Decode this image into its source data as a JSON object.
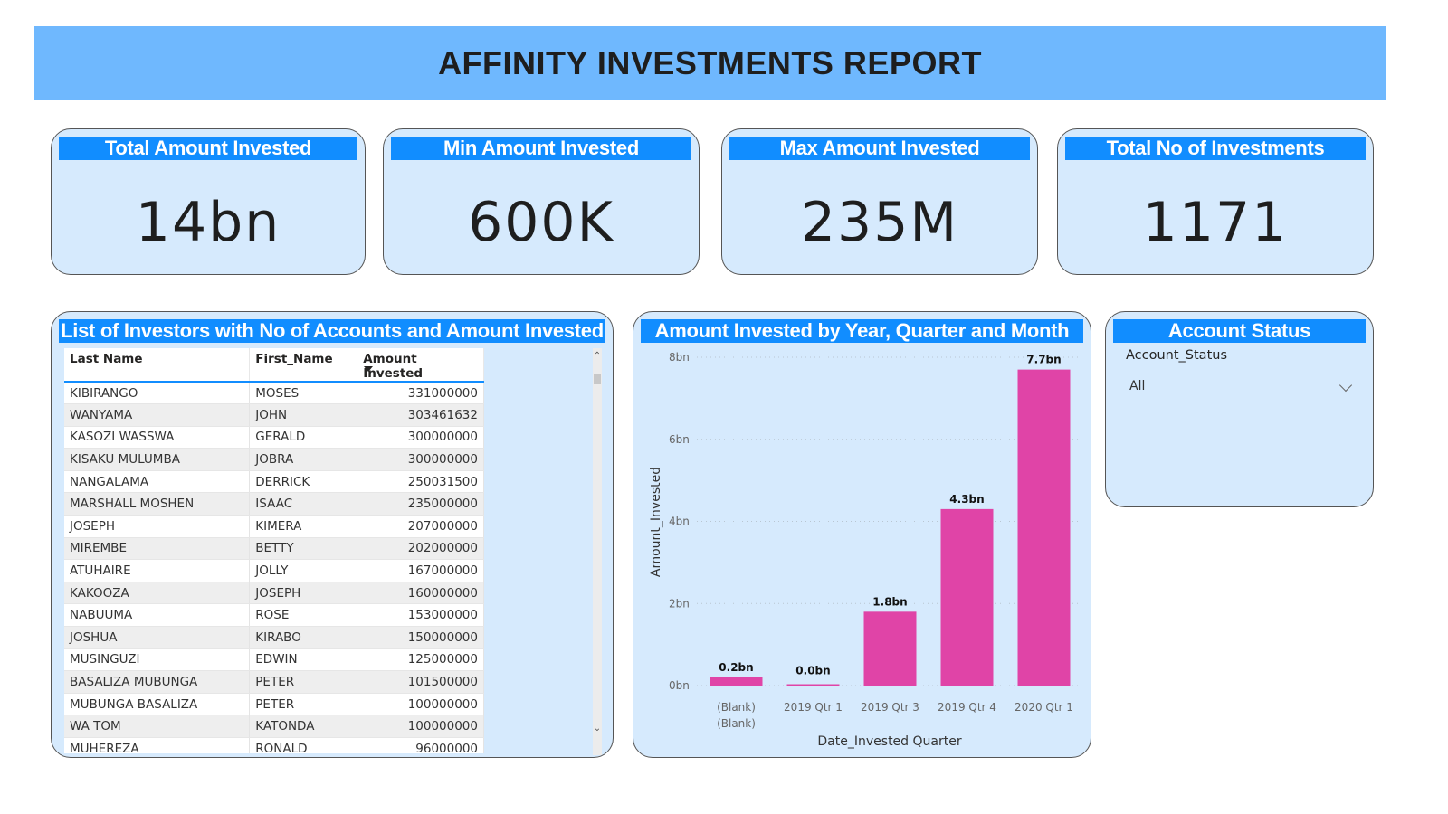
{
  "header": {
    "title": "AFFINITY INVESTMENTS REPORT"
  },
  "colors": {
    "banner": "#6fb8fe",
    "card_title": "#118dff",
    "card_bg": "#d6eafd",
    "bar": "#e044a7"
  },
  "kpis": [
    {
      "title": "Total Amount Invested",
      "value": "14bn"
    },
    {
      "title": "Min Amount Invested",
      "value": "600K"
    },
    {
      "title": "Max Amount Invested",
      "value": "235M"
    },
    {
      "title": "Total No of Investments",
      "value": "1171"
    }
  ],
  "investors_table": {
    "title": "List of Investors with No of Accounts and Amount Invested",
    "columns": [
      "Last Name",
      "First_Name",
      "Amount Invested"
    ],
    "sorted_column": "Amount Invested",
    "rows": [
      [
        "KIBIRANGO",
        "MOSES",
        "331000000"
      ],
      [
        "WANYAMA",
        "JOHN",
        "303461632"
      ],
      [
        "KASOZI WASSWA",
        "GERALD",
        "300000000"
      ],
      [
        "KISAKU MULUMBA",
        "JOBRA",
        "300000000"
      ],
      [
        "NANGALAMA",
        "DERRICK",
        "250031500"
      ],
      [
        "MARSHALL MOSHEN",
        "ISAAC",
        "235000000"
      ],
      [
        "JOSEPH",
        "KIMERA",
        "207000000"
      ],
      [
        "MIREMBE",
        "BETTY",
        "202000000"
      ],
      [
        "ATUHAIRE",
        "JOLLY",
        "167000000"
      ],
      [
        "KAKOOZA",
        "JOSEPH",
        "160000000"
      ],
      [
        "NABUUMA",
        "ROSE",
        "153000000"
      ],
      [
        "JOSHUA",
        "KIRABO",
        "150000000"
      ],
      [
        "MUSINGUZI",
        "EDWIN",
        "125000000"
      ],
      [
        "BASALIZA MUBUNGA",
        "PETER",
        "101500000"
      ],
      [
        "MUBUNGA BASALIZA",
        "PETER",
        "100000000"
      ],
      [
        "WA TOM",
        "KATONDA",
        "100000000"
      ],
      [
        "MUHEREZA",
        "RONALD",
        "96000000"
      ]
    ]
  },
  "chart": {
    "title": "Amount Invested by Year, Quarter and Month"
  },
  "chart_data": {
    "type": "bar",
    "title": "Amount Invested by Year, Quarter and Month",
    "xlabel": "Date_Invested Quarter",
    "ylabel": "Amount_Invested",
    "categories": [
      [
        "(Blank)",
        "(Blank)"
      ],
      [
        "2019 Qtr 1"
      ],
      [
        "2019 Qtr 3"
      ],
      [
        "2019 Qtr 4"
      ],
      [
        "2020 Qtr 1"
      ]
    ],
    "values": [
      0.2,
      0.02,
      1.8,
      4.3,
      7.7
    ],
    "data_labels": [
      "0.2bn",
      "0.0bn",
      "1.8bn",
      "4.3bn",
      "7.7bn"
    ],
    "unit": "bn",
    "ylim": [
      0,
      8
    ],
    "yticks": [
      0,
      2,
      4,
      6,
      8
    ],
    "ytick_labels": [
      "0bn",
      "2bn",
      "4bn",
      "6bn",
      "8bn"
    ],
    "grid": true,
    "legend": "none"
  },
  "slicer": {
    "title": "Account Status",
    "field_label": "Account_Status",
    "selected": "All"
  }
}
